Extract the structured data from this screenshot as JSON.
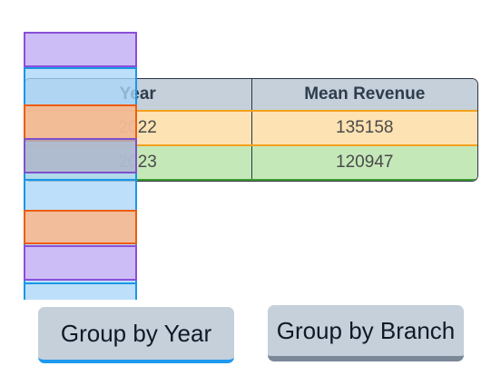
{
  "table": {
    "headers": [
      "Year",
      "Mean Revenue"
    ],
    "rows": [
      [
        "2022",
        "135158"
      ],
      [
        "2023",
        "120947"
      ]
    ]
  },
  "buttons": {
    "group_by_year": "Group by Year",
    "group_by_branch": "Group by Branch"
  },
  "colors": {
    "header_bg": "#c5d0db",
    "row_2022_bg": "#fde2b3",
    "row_2022_border": "#f3a11c",
    "row_2023_bg": "#c5e8b9",
    "row_2023_border": "#3f9e2f",
    "active_underline": "#1d99ef"
  }
}
